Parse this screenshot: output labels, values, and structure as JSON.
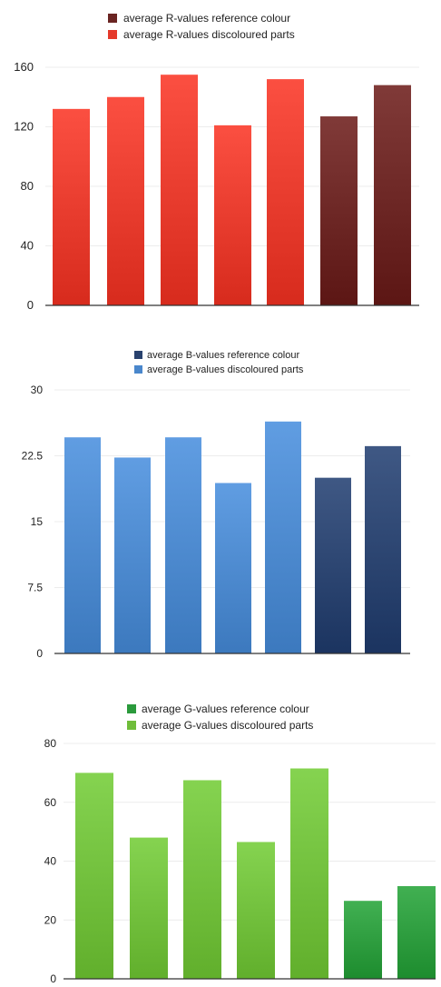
{
  "charts": [
    {
      "legend": [
        {
          "label": "average R-values reference colour",
          "color": "#6a2422"
        },
        {
          "label": "average R-values discoloured parts",
          "color": "#e5392b"
        }
      ]
    },
    {
      "legend": [
        {
          "label": "average B-values reference colour",
          "color": "#29426e"
        },
        {
          "label": "average B-values discoloured parts",
          "color": "#4a87cc"
        }
      ]
    },
    {
      "legend": [
        {
          "label": "average G-values reference colour",
          "color": "#2b9a3c"
        },
        {
          "label": "average G-values discoloured parts",
          "color": "#6fbd3a"
        }
      ]
    }
  ],
  "chart_data": [
    {
      "type": "bar",
      "title": "",
      "ylim": [
        0,
        160
      ],
      "yticks": [
        "0",
        "40",
        "80",
        "120",
        "160"
      ],
      "values": [
        132,
        140,
        155,
        121,
        152,
        127,
        148
      ],
      "series_of_bar": [
        1,
        1,
        1,
        1,
        1,
        0,
        0
      ],
      "grid": true,
      "legend_position": "top-center"
    },
    {
      "type": "bar",
      "title": "",
      "ylim": [
        0,
        30
      ],
      "yticks": [
        "0",
        "7.5",
        "15",
        "22.5",
        "30"
      ],
      "values": [
        24.6,
        22.3,
        24.6,
        19.4,
        26.4,
        20.0,
        23.6
      ],
      "series_of_bar": [
        1,
        1,
        1,
        1,
        1,
        0,
        0
      ],
      "grid": true,
      "legend_position": "top-center"
    },
    {
      "type": "bar",
      "title": "",
      "ylim": [
        0,
        80
      ],
      "yticks": [
        "0",
        "20",
        "40",
        "60",
        "80"
      ],
      "values": [
        70,
        48,
        67.5,
        46.5,
        71.5,
        26.5,
        31.5
      ],
      "series_of_bar": [
        1,
        1,
        1,
        1,
        1,
        0,
        0
      ],
      "grid": true,
      "legend_position": "top-center"
    }
  ]
}
